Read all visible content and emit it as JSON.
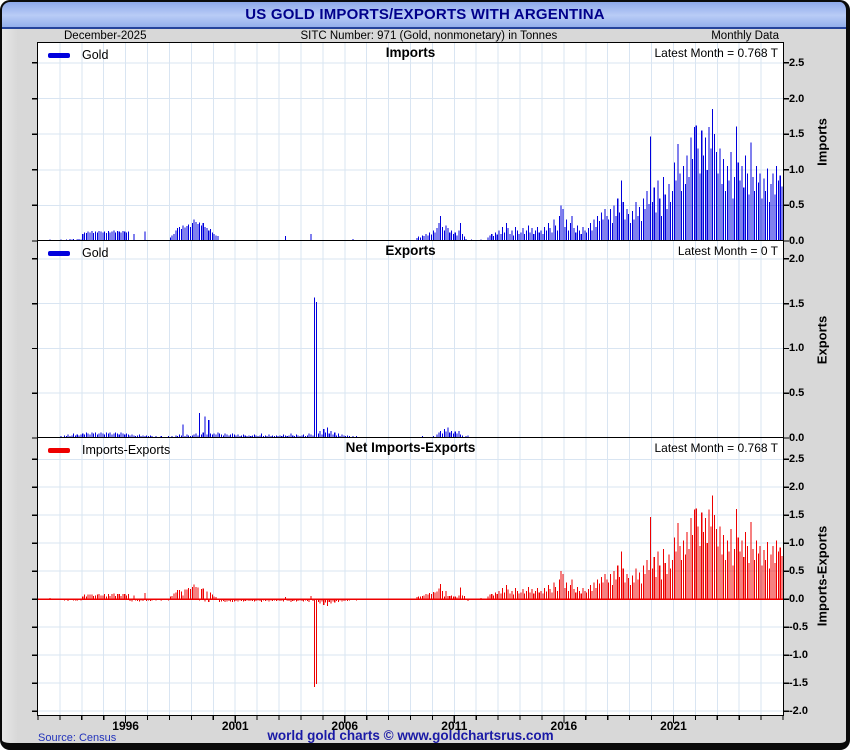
{
  "header": {
    "title": "US GOLD IMPORTS/EXPORTS WITH ARGENTINA"
  },
  "subtitle": {
    "left": "December-2025",
    "center": "SITC Number: 971 (Gold, nonmonetary) in Tonnes",
    "right": "Monthly Data"
  },
  "footer": {
    "source": "Source: Census",
    "credit": "world gold charts © www.goldchartsrus.com"
  },
  "colors": {
    "header_text": "#00008b",
    "header_gradient_top": "#8aa6e9",
    "header_gradient_bottom": "#93afec",
    "background": "#d8d8d8",
    "plot_background": "#ffffff",
    "grid": "#d9e5f2",
    "axis": "#000000",
    "imports_bar": "#0000dd",
    "exports_bar": "#0000dd",
    "net_bar": "#ee0000",
    "net_zero_line": "#ee0000",
    "footer_source_text": "#2233bb",
    "footer_credit_text": "#1a1aa6"
  },
  "chart_data": {
    "type": "bar",
    "frequency": "monthly",
    "start": "1992-01",
    "end": "2025-12",
    "unit": "Tonnes",
    "x_tick_years": [
      1996,
      2001,
      2006,
      2011,
      2016,
      2021
    ],
    "panels": [
      {
        "id": "imports",
        "title": "Imports",
        "legend_label": "Gold",
        "latest_label": "Latest Month = 0.768 T",
        "latest_value": 0.768,
        "ylabel": "Imports",
        "ylim": [
          0,
          2.78
        ],
        "yticks": [
          0,
          0.5,
          1,
          1.5,
          2,
          2.5
        ],
        "bar_color": "#0000dd",
        "series": "imports"
      },
      {
        "id": "exports",
        "title": "Exports",
        "legend_label": "Gold",
        "latest_label": "Latest Month = 0 T",
        "latest_value": 0,
        "ylabel": "Exports",
        "ylim": [
          0,
          2.2
        ],
        "yticks": [
          0,
          0.5,
          1,
          1.5,
          2
        ],
        "bar_color": "#0000dd",
        "series": "exports"
      },
      {
        "id": "net",
        "title": "Net Imports-Exports",
        "legend_label": "Imports-Exports",
        "latest_label": "Latest Month = 0.768 T",
        "latest_value": 0.768,
        "ylabel": "Imports-Exports",
        "ylim": [
          -2.07,
          2.88
        ],
        "yticks": [
          2.5,
          2,
          1.5,
          1,
          0.5,
          0,
          -0.5,
          -1,
          -1.5,
          -2
        ],
        "bar_color": "#ee0000",
        "series": "net",
        "derived": "imports - exports",
        "zero_line_color": "#ee0000"
      }
    ],
    "series": {
      "imports": [
        0,
        0.01,
        0,
        0,
        0.01,
        0,
        0.02,
        0,
        0.01,
        0,
        0,
        0.01,
        0.02,
        0,
        0.01,
        0.02,
        0.01,
        0.03,
        0.02,
        0.03,
        0.01,
        0.02,
        0.03,
        0.02,
        0.1,
        0.12,
        0.11,
        0.13,
        0.12,
        0.14,
        0.11,
        0.13,
        0.12,
        0.14,
        0.13,
        0.12,
        0.13,
        0.11,
        0.14,
        0.12,
        0.13,
        0.15,
        0.12,
        0.14,
        0.13,
        0.12,
        0.14,
        0.13,
        0.12,
        0.13,
        0,
        0,
        0.1,
        0,
        0,
        0,
        0,
        0,
        0.13,
        0,
        0,
        0,
        0,
        0,
        0,
        0,
        0,
        0,
        0,
        0,
        0,
        0,
        0.05,
        0.08,
        0.1,
        0.15,
        0.18,
        0.2,
        0.17,
        0.22,
        0.19,
        0.21,
        0.23,
        0.2,
        0.25,
        0.3,
        0.27,
        0.24,
        0.26,
        0.22,
        0.25,
        0.2,
        0.18,
        0.15,
        0.17,
        0.12,
        0.1,
        0.08,
        0.07,
        0,
        0,
        0,
        0,
        0,
        0,
        0,
        0,
        0,
        0,
        0,
        0,
        0,
        0,
        0,
        0,
        0,
        0,
        0,
        0,
        0,
        0,
        0,
        0,
        0,
        0,
        0,
        0,
        0,
        0,
        0,
        0,
        0,
        0,
        0,
        0,
        0.07,
        0,
        0,
        0,
        0,
        0,
        0,
        0,
        0,
        0,
        0,
        0,
        0,
        0,
        0.1,
        0,
        0,
        0,
        0,
        0,
        0,
        0,
        0,
        0,
        0,
        0,
        0,
        0,
        0,
        0,
        0,
        0,
        0,
        0,
        0,
        0,
        0,
        0.03,
        0,
        0,
        0,
        0,
        0,
        0,
        0,
        0,
        0,
        0,
        0,
        0,
        0,
        0,
        0,
        0,
        0,
        0,
        0,
        0,
        0,
        0,
        0,
        0,
        0,
        0,
        0,
        0,
        0,
        0,
        0,
        0,
        0,
        0,
        0.04,
        0.06,
        0.05,
        0.08,
        0.07,
        0.1,
        0.08,
        0.12,
        0.09,
        0.15,
        0.12,
        0.18,
        0.25,
        0.35,
        0.2,
        0.15,
        0.22,
        0.18,
        0.12,
        0.15,
        0.1,
        0.12,
        0.08,
        0.15,
        0.25,
        0.1,
        0.06,
        0.03,
        0,
        0,
        0.02,
        0,
        0,
        0,
        0,
        0.02,
        0,
        0,
        0,
        0.05,
        0.08,
        0.1,
        0.07,
        0.12,
        0.09,
        0.15,
        0.1,
        0.2,
        0.12,
        0.25,
        0.18,
        0.1,
        0.15,
        0.08,
        0.2,
        0.15,
        0.1,
        0.12,
        0.18,
        0.1,
        0.15,
        0.22,
        0.12,
        0.18,
        0.1,
        0.15,
        0.2,
        0.12,
        0.15,
        0.1,
        0.2,
        0.15,
        0.25,
        0.18,
        0.12,
        0.3,
        0.22,
        0.15,
        0.35,
        0.5,
        0.45,
        0.2,
        0.3,
        0.15,
        0.25,
        0.35,
        0.18,
        0.12,
        0.22,
        0.15,
        0.1,
        0.2,
        0.15,
        0.12,
        0.18,
        0.25,
        0.15,
        0.3,
        0.2,
        0.35,
        0.28,
        0.4,
        0.3,
        0.45,
        0.35,
        0.3,
        0.45,
        0.25,
        0.5,
        0.35,
        0.6,
        0.4,
        0.85,
        0.55,
        0.3,
        0.45,
        0.38,
        0.25,
        0.42,
        0.3,
        0.55,
        0.35,
        0.48,
        0.28,
        0.6,
        0.45,
        0.7,
        0.52,
        1.47,
        0.55,
        0.75,
        0.4,
        0.85,
        0.6,
        0.35,
        0.9,
        0.65,
        0.45,
        0.8,
        0.55,
        0.7,
        1.1,
        0.85,
        1.36,
        0.95,
        0.7,
        1.05,
        0.8,
        1.2,
        0.9,
        1.45,
        1.15,
        1.6,
        1.62,
        1.3,
        0.95,
        1.55,
        1.2,
        1.45,
        1.0,
        1.6,
        1.3,
        1.85,
        1.5,
        1.25,
        0.95,
        1.3,
        0.8,
        1.15,
        0.7,
        1.05,
        0.85,
        1.25,
        0.6,
        0.9,
        1.61,
        1.1,
        0.85,
        1.05,
        0.75,
        1.2,
        0.95,
        0.65,
        1.38,
        0.9,
        0.7,
        1.05,
        0.82,
        0.95,
        0.6,
        0.88,
        0.7,
        1.02,
        0.55,
        0.8,
        0.95,
        0.65,
        1.05,
        0.85,
        0.92,
        0.768
      ],
      "exports": [
        0.01,
        0,
        0.01,
        0.01,
        0,
        0.01,
        0,
        0.01,
        0.01,
        0,
        0.01,
        0.01,
        0.02,
        0.01,
        0.03,
        0.02,
        0.04,
        0.02,
        0.03,
        0.05,
        0.03,
        0.04,
        0.03,
        0.04,
        0.05,
        0.04,
        0.06,
        0.05,
        0.04,
        0.06,
        0.05,
        0.06,
        0.04,
        0.05,
        0.06,
        0.05,
        0.04,
        0.06,
        0.05,
        0.06,
        0.04,
        0.05,
        0.06,
        0.05,
        0.04,
        0.06,
        0.05,
        0.04,
        0.05,
        0.04,
        0.03,
        0.04,
        0.03,
        0.02,
        0.03,
        0.04,
        0.02,
        0.03,
        0.02,
        0.03,
        0.02,
        0.03,
        0.02,
        0,
        0.02,
        0,
        0.01,
        0.02,
        0,
        0.01,
        0,
        0.02,
        0,
        0.02,
        0,
        0.03,
        0.02,
        0.04,
        0.03,
        0.15,
        0.02,
        0.04,
        0.03,
        0.02,
        0.03,
        0.04,
        0.05,
        0.03,
        0.28,
        0.04,
        0.06,
        0.24,
        0.04,
        0.2,
        0.05,
        0.04,
        0.05,
        0.04,
        0.06,
        0.05,
        0.04,
        0.03,
        0.05,
        0.04,
        0.03,
        0.04,
        0.05,
        0.04,
        0.03,
        0.04,
        0.02,
        0.03,
        0.04,
        0.03,
        0.02,
        0.03,
        0.02,
        0.03,
        0.04,
        0.03,
        0.02,
        0.03,
        0.05,
        0.02,
        0.03,
        0.02,
        0.04,
        0.02,
        0.03,
        0.02,
        0.03,
        0.02,
        0.03,
        0.02,
        0.04,
        0.03,
        0.02,
        0.03,
        0.05,
        0.03,
        0.02,
        0.04,
        0.03,
        0.02,
        0.03,
        0.04,
        0.02,
        0.03,
        0.05,
        0.04,
        0.03,
        1.57,
        1.52,
        0.05,
        0.08,
        0.04,
        0.1,
        0.06,
        0.12,
        0.05,
        0.08,
        0.04,
        0.06,
        0.03,
        0.05,
        0.02,
        0.04,
        0.03,
        0.02,
        0.03,
        0.02,
        0.01,
        0.02,
        0.01,
        0.02,
        0.01,
        0,
        0.01,
        0,
        0.01,
        0,
        0.01,
        0,
        0.01,
        0,
        0,
        0.01,
        0,
        0.01,
        0,
        0,
        0,
        0,
        0,
        0.01,
        0,
        0,
        0.01,
        0,
        0,
        0,
        0.01,
        0,
        0,
        0,
        0.01,
        0,
        0,
        0.01,
        0,
        0.02,
        0,
        0.01,
        0,
        0.01,
        0,
        0.02,
        0,
        0.04,
        0.06,
        0.08,
        0.05,
        0.1,
        0.07,
        0.12,
        0.06,
        0.08,
        0.05,
        0.07,
        0.05,
        0.08,
        0.04,
        0.03,
        0,
        0.02,
        0.03,
        0,
        0.01,
        0,
        0,
        0,
        0.01,
        0,
        0,
        0,
        0,
        0,
        0,
        0.01,
        0,
        0,
        0,
        0,
        0,
        0,
        0,
        0,
        0.01,
        0,
        0,
        0,
        0,
        0,
        0,
        0,
        0,
        0,
        0,
        0,
        0,
        0,
        0,
        0,
        0,
        0,
        0,
        0,
        0,
        0.01,
        0,
        0,
        0,
        0,
        0,
        0,
        0,
        0,
        0,
        0,
        0,
        0,
        0,
        0,
        0,
        0,
        0,
        0,
        0,
        0,
        0,
        0,
        0,
        0,
        0,
        0,
        0,
        0,
        0,
        0,
        0,
        0,
        0,
        0,
        0,
        0,
        0,
        0,
        0,
        0,
        0,
        0,
        0,
        0,
        0,
        0,
        0,
        0,
        0,
        0,
        0,
        0,
        0,
        0,
        0,
        0,
        0,
        0,
        0,
        0,
        0,
        0,
        0,
        0,
        0,
        0,
        0,
        0,
        0,
        0,
        0,
        0,
        0,
        0,
        0,
        0,
        0,
        0,
        0,
        0,
        0,
        0,
        0,
        0,
        0,
        0,
        0,
        0,
        0,
        0,
        0,
        0,
        0,
        0.01,
        0,
        0,
        0,
        0,
        0,
        0,
        0,
        0,
        0,
        0,
        0,
        0,
        0,
        0,
        0,
        0,
        0,
        0,
        0,
        0,
        0,
        0,
        0,
        0,
        0,
        0,
        0,
        0,
        0,
        0,
        0,
        0,
        0,
        0,
        0
      ]
    }
  }
}
